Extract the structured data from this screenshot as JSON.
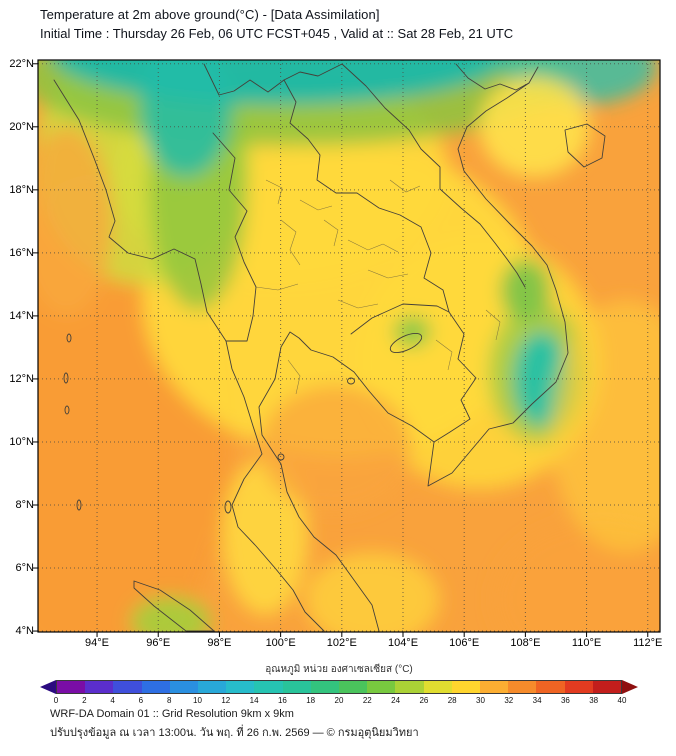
{
  "header": {
    "title": "Temperature at 2m above ground(°C) - [Data Assimilation]",
    "subtitle": "Initial Time : Thursday 26 Feb, 06 UTC FCST+045 , Valid at :: Sat 28 Feb, 21 UTC"
  },
  "map": {
    "lon_range": [
      92.07,
      112.4
    ],
    "lat_range": [
      3.97,
      22.12
    ],
    "lat_ticks": [
      {
        "label": "22°N",
        "value": 22
      },
      {
        "label": "20°N",
        "value": 20
      },
      {
        "label": "18°N",
        "value": 18
      },
      {
        "label": "16°N",
        "value": 16
      },
      {
        "label": "14°N",
        "value": 14
      },
      {
        "label": "12°N",
        "value": 12
      },
      {
        "label": "10°N",
        "value": 10
      },
      {
        "label": "8°N",
        "value": 8
      },
      {
        "label": "6°N",
        "value": 6
      },
      {
        "label": "4°N",
        "value": 4
      }
    ],
    "lon_ticks": [
      {
        "label": "94°E",
        "value": 94
      },
      {
        "label": "96°E",
        "value": 96
      },
      {
        "label": "98°E",
        "value": 98
      },
      {
        "label": "100°E",
        "value": 100
      },
      {
        "label": "102°E",
        "value": 102
      },
      {
        "label": "104°E",
        "value": 104
      },
      {
        "label": "106°E",
        "value": 106
      },
      {
        "label": "108°E",
        "value": 108
      },
      {
        "label": "110°E",
        "value": 110
      },
      {
        "label": "112°E",
        "value": 112
      }
    ]
  },
  "chart_data": {
    "type": "heatmap",
    "title": "Temperature at 2m above ground (°C)",
    "field_unit": "°C",
    "scale_min": 0,
    "scale_max": 40,
    "lon_range": [
      92.07,
      112.4
    ],
    "lat_range": [
      3.97,
      22.12
    ],
    "base": {
      "color": "#F9A23C",
      "temp_c": 30
    },
    "regions": [
      {
        "name": "bay-of-bengal-warm",
        "lon": 94.0,
        "lat": 10.5,
        "rx_deg": 4.5,
        "ry_deg": 8.0,
        "color": "#F89B33",
        "opacity": 0.9,
        "temp_c": 31
      },
      {
        "name": "central-thailand-yellow",
        "lon": 102.0,
        "lat": 14.5,
        "rx_deg": 6.5,
        "ry_deg": 5.0,
        "color": "#FFD93B",
        "opacity": 0.95,
        "temp_c": 27
      },
      {
        "name": "south-vietnam-yellow",
        "lon": 106.5,
        "lat": 12.5,
        "rx_deg": 4.0,
        "ry_deg": 4.0,
        "color": "#FFD93B",
        "opacity": 0.85,
        "temp_c": 27
      },
      {
        "name": "north-thailand-yellow",
        "lon": 100.0,
        "lat": 18.5,
        "rx_deg": 5.5,
        "ry_deg": 3.5,
        "color": "#FFD93B",
        "opacity": 0.9,
        "temp_c": 26
      },
      {
        "name": "nw-myanmar-yellowgreen",
        "lon": 95.5,
        "lat": 19.0,
        "rx_deg": 3.5,
        "ry_deg": 4.0,
        "color": "#CFDD3F",
        "opacity": 0.85,
        "temp_c": 25
      },
      {
        "name": "myanmar-green-strip",
        "lon": 97.3,
        "lat": 18.0,
        "rx_deg": 1.6,
        "ry_deg": 3.8,
        "color": "#8CC43F",
        "opacity": 0.8,
        "temp_c": 24
      },
      {
        "name": "west-myanmar-coast-orange",
        "lon": 93.0,
        "lat": 17.0,
        "rx_deg": 1.5,
        "ry_deg": 3.0,
        "color": "#F9A93C",
        "opacity": 0.8,
        "temp_c": 30
      },
      {
        "name": "north-green-band",
        "lon": 100.5,
        "lat": 21.6,
        "rx_deg": 9.0,
        "ry_deg": 2.2,
        "color": "#8CC43F",
        "opacity": 0.85,
        "temp_c": 23
      },
      {
        "name": "north-teal-band",
        "lon": 100.0,
        "lat": 22.3,
        "rx_deg": 7.5,
        "ry_deg": 1.6,
        "color": "#1DB8A8",
        "opacity": 0.95,
        "temp_c": 20
      },
      {
        "name": "teal-tongue-nw",
        "lon": 96.9,
        "lat": 20.6,
        "rx_deg": 1.5,
        "ry_deg": 2.2,
        "color": "#23BCA8",
        "opacity": 0.85,
        "temp_c": 21
      },
      {
        "name": "teal-top-right",
        "lon": 109.8,
        "lat": 21.9,
        "rx_deg": 2.5,
        "ry_deg": 1.2,
        "color": "#2FBFAB",
        "opacity": 0.8,
        "temp_c": 21
      },
      {
        "name": "yellow-north-vietnam",
        "lon": 108.3,
        "lat": 20.0,
        "rx_deg": 1.8,
        "ry_deg": 1.6,
        "color": "#FFE24A",
        "opacity": 0.9,
        "temp_c": 26
      },
      {
        "name": "green-annam-range",
        "lon": 108.0,
        "lat": 14.8,
        "rx_deg": 0.8,
        "ry_deg": 1.0,
        "color": "#6FC24A",
        "opacity": 0.85,
        "temp_c": 24
      },
      {
        "name": "green-central-highlands-halo",
        "lon": 108.4,
        "lat": 12.2,
        "rx_deg": 1.6,
        "ry_deg": 2.2,
        "color": "#7CC74A",
        "opacity": 0.6,
        "temp_c": 24
      },
      {
        "name": "teal-central-highlands",
        "lon": 108.5,
        "lat": 12.0,
        "rx_deg": 0.9,
        "ry_deg": 1.5,
        "color": "#25C1A8",
        "opacity": 0.95,
        "temp_c": 21
      },
      {
        "name": "green-spot-cambodia",
        "lon": 104.3,
        "lat": 13.5,
        "rx_deg": 0.6,
        "ry_deg": 0.5,
        "color": "#7CC74A",
        "opacity": 0.85,
        "temp_c": 24
      },
      {
        "name": "peninsula-yellow",
        "lon": 99.5,
        "lat": 7.0,
        "rx_deg": 1.4,
        "ry_deg": 2.5,
        "color": "#FFDC3E",
        "opacity": 0.85,
        "temp_c": 27
      },
      {
        "name": "south-yellow",
        "lon": 103.0,
        "lat": 5.0,
        "rx_deg": 2.2,
        "ry_deg": 1.5,
        "color": "#FFD93B",
        "opacity": 0.7,
        "temp_c": 27
      },
      {
        "name": "green-north-sumatra",
        "lon": 96.4,
        "lat": 4.3,
        "rx_deg": 1.3,
        "ry_deg": 0.8,
        "color": "#A5CE3C",
        "opacity": 0.9,
        "temp_c": 24
      },
      {
        "name": "gulf-orange",
        "lon": 101.8,
        "lat": 9.8,
        "rx_deg": 2.5,
        "ry_deg": 2.0,
        "color": "#FAA63C",
        "opacity": 0.75,
        "temp_c": 30
      },
      {
        "name": "southeast-orange",
        "lon": 110.5,
        "lat": 5.0,
        "rx_deg": 3.5,
        "ry_deg": 2.5,
        "color": "#F9A23C",
        "opacity": 0.9,
        "temp_c": 30
      },
      {
        "name": "east-sea-yellow",
        "lon": 111.3,
        "lat": 10.5,
        "rx_deg": 2.5,
        "ry_deg": 4.0,
        "color": "#FFCF3A",
        "opacity": 0.6,
        "temp_c": 28
      }
    ]
  },
  "colorbar": {
    "label": "อุณหภูมิ หน่วย องศาเซลเซียส (°C)",
    "ticks": [
      "0",
      "2",
      "4",
      "6",
      "8",
      "10",
      "12",
      "14",
      "16",
      "18",
      "20",
      "22",
      "24",
      "26",
      "28",
      "30",
      "32",
      "34",
      "36",
      "38",
      "40"
    ],
    "segment_colors": [
      "#7A0DA6",
      "#5B2ECC",
      "#3F4FDB",
      "#2E6FE3",
      "#2A8FE0",
      "#28A8D8",
      "#27BCCB",
      "#26C4B2",
      "#29C49A",
      "#33C47E",
      "#4AC45C",
      "#78C93F",
      "#ABD236",
      "#E0DD30",
      "#FFD52E",
      "#FCAE32",
      "#F68B2B",
      "#EF6423",
      "#E23B20",
      "#C21E1C"
    ],
    "arrow_left_color": "#2B0B80",
    "arrow_right_color": "#8F1010"
  },
  "footer": {
    "line1": "WRF-DA Domain 01 :: Grid Resolution 9km x 9km",
    "line2": "ปรับปรุงข้อมูล ณ เวลา 13:00น. วัน พฤ. ที่ 26 ก.พ. 2569 — © กรมอุตุนิยมวิทยา"
  }
}
